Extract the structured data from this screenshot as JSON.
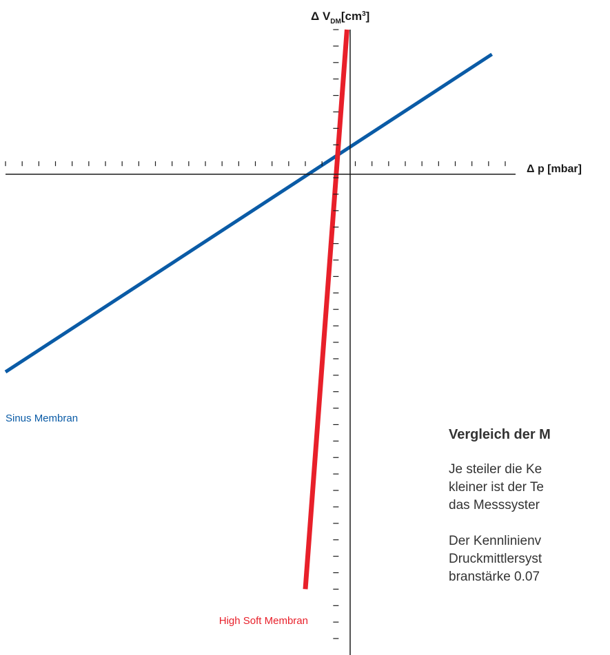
{
  "chart_data": {
    "type": "line",
    "xlabel": "Δ p [mbar]",
    "ylabel_parts": {
      "delta": "Δ V",
      "sub": "DM",
      "unit_open": "[cm",
      "sup": "3",
      "unit_close": "]"
    },
    "xlim": [
      -20,
      10
    ],
    "ylim": [
      -30,
      8
    ],
    "x_ticks_minor": 30,
    "y_ticks_minor": 38,
    "grid": false,
    "series": [
      {
        "name": "Sinus Membran",
        "color": "#0a5ba6",
        "x": [
          -20,
          9.2
        ],
        "y": [
          -12.8,
          6.5
        ]
      },
      {
        "name": "High Soft Membran",
        "color": "#e8202a",
        "x": [
          -2.0,
          0.5
        ],
        "y": [
          -26.0,
          8.0
        ]
      }
    ]
  },
  "note": {
    "heading": "Vergleich der M",
    "para1": [
      "Je steiler die Ke",
      "kleiner ist der Te",
      "das Messsyster"
    ],
    "para2": [
      "Der Kennlinienv",
      "Druckmittlersyst",
      "branstärke 0.07"
    ]
  }
}
